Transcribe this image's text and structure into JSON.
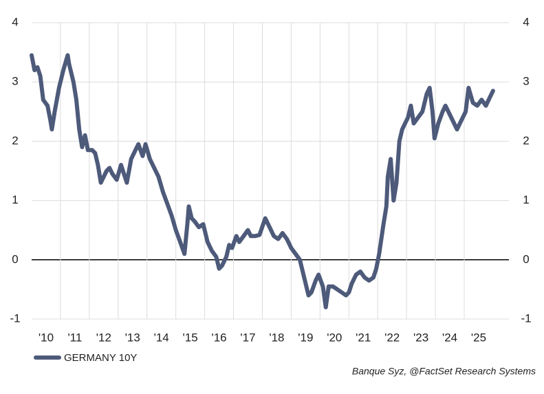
{
  "chart_data": {
    "type": "line",
    "source": "Banque Syz, @FactSet Research Systems",
    "x": [
      2010.0,
      2010.1,
      2010.2,
      2010.3,
      2010.4,
      2010.55,
      2010.65,
      2010.7,
      2010.8,
      2010.95,
      2011.1,
      2011.25,
      2011.3,
      2011.45,
      2011.55,
      2011.65,
      2011.75,
      2011.85,
      2011.95,
      2012.1,
      2012.2,
      2012.3,
      2012.4,
      2012.5,
      2012.6,
      2012.7,
      2012.8,
      2012.95,
      2013.1,
      2013.3,
      2013.45,
      2013.55,
      2013.7,
      2013.85,
      2013.95,
      2014.1,
      2014.25,
      2014.4,
      2014.55,
      2014.7,
      2014.85,
      2015.0,
      2015.15,
      2015.3,
      2015.4,
      2015.45,
      2015.55,
      2015.65,
      2015.8,
      2015.95,
      2016.1,
      2016.25,
      2016.4,
      2016.5,
      2016.6,
      2016.75,
      2016.85,
      2016.95,
      2017.1,
      2017.2,
      2017.35,
      2017.5,
      2017.6,
      2017.75,
      2017.9,
      2018.1,
      2018.25,
      2018.4,
      2018.55,
      2018.7,
      2018.85,
      2019.0,
      2019.15,
      2019.3,
      2019.45,
      2019.6,
      2019.7,
      2019.85,
      2019.95,
      2020.1,
      2020.2,
      2020.3,
      2020.45,
      2020.6,
      2020.75,
      2020.9,
      2021.0,
      2021.1,
      2021.25,
      2021.4,
      2021.55,
      2021.7,
      2021.85,
      2021.95,
      2022.05,
      2022.2,
      2022.3,
      2022.35,
      2022.45,
      2022.55,
      2022.65,
      2022.75,
      2022.85,
      2022.95,
      2023.05,
      2023.15,
      2023.25,
      2023.4,
      2023.55,
      2023.7,
      2023.8,
      2023.9,
      2023.97,
      2024.1,
      2024.25,
      2024.35,
      2024.5,
      2024.65,
      2024.75,
      2024.85,
      2024.95,
      2025.05,
      2025.15,
      2025.3,
      2025.45,
      2025.6,
      2025.75,
      2025.85,
      2026.0
    ],
    "series": [
      {
        "name": "GERMANY 10Y",
        "color": "#4d5a7a",
        "values": [
          3.45,
          3.2,
          3.25,
          3.1,
          2.7,
          2.6,
          2.35,
          2.2,
          2.5,
          2.9,
          3.2,
          3.45,
          3.3,
          3.0,
          2.7,
          2.2,
          1.9,
          2.1,
          1.85,
          1.85,
          1.8,
          1.6,
          1.3,
          1.4,
          1.5,
          1.55,
          1.45,
          1.35,
          1.6,
          1.3,
          1.7,
          1.8,
          1.95,
          1.75,
          1.95,
          1.7,
          1.55,
          1.4,
          1.15,
          0.95,
          0.75,
          0.5,
          0.3,
          0.1,
          0.6,
          0.9,
          0.7,
          0.65,
          0.55,
          0.6,
          0.3,
          0.15,
          0.05,
          -0.15,
          -0.1,
          0.05,
          0.25,
          0.2,
          0.4,
          0.3,
          0.4,
          0.5,
          0.4,
          0.4,
          0.42,
          0.7,
          0.55,
          0.4,
          0.35,
          0.45,
          0.35,
          0.2,
          0.1,
          0.0,
          -0.3,
          -0.6,
          -0.55,
          -0.35,
          -0.25,
          -0.45,
          -0.8,
          -0.45,
          -0.45,
          -0.5,
          -0.55,
          -0.6,
          -0.55,
          -0.4,
          -0.25,
          -0.2,
          -0.3,
          -0.35,
          -0.3,
          -0.15,
          0.1,
          0.6,
          0.9,
          1.4,
          1.7,
          1.0,
          1.3,
          2.0,
          2.2,
          2.3,
          2.4,
          2.6,
          2.3,
          2.4,
          2.5,
          2.8,
          2.9,
          2.5,
          2.05,
          2.3,
          2.5,
          2.6,
          2.45,
          2.3,
          2.2,
          2.3,
          2.4,
          2.5,
          2.9,
          2.65,
          2.6,
          2.7,
          2.6,
          2.7,
          2.85
        ]
      }
    ],
    "xlim": [
      2010,
      2026.55
    ],
    "xticks": [
      {
        "value": 2010,
        "label": "'10"
      },
      {
        "value": 2011,
        "label": "'11"
      },
      {
        "value": 2012,
        "label": "'12"
      },
      {
        "value": 2013,
        "label": "'13"
      },
      {
        "value": 2014,
        "label": "'14"
      },
      {
        "value": 2015,
        "label": "'15"
      },
      {
        "value": 2016,
        "label": "'16"
      },
      {
        "value": 2017,
        "label": "'17"
      },
      {
        "value": 2018,
        "label": "'18"
      },
      {
        "value": 2019,
        "label": "'19"
      },
      {
        "value": 2020,
        "label": "'20"
      },
      {
        "value": 2021,
        "label": "'21"
      },
      {
        "value": 2022,
        "label": "'22"
      },
      {
        "value": 2023,
        "label": "'23"
      },
      {
        "value": 2024,
        "label": "'24"
      },
      {
        "value": 2025,
        "label": "'25"
      }
    ],
    "ylim": [
      -1,
      4
    ],
    "yticks": [
      -1,
      0,
      1,
      2,
      3,
      4
    ],
    "grid": true
  }
}
